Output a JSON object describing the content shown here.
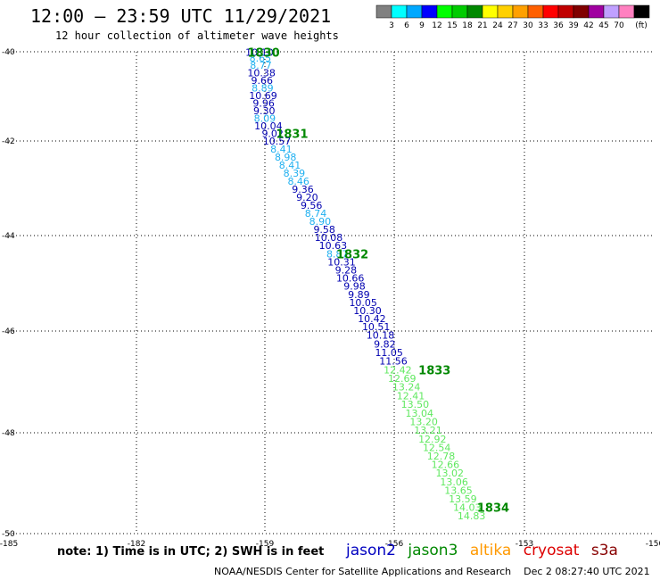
{
  "header": {
    "title": "12:00 – 23:59 UTC 11/29/2021",
    "subtitle": "12 hour collection of altimeter wave heights"
  },
  "colorbar": {
    "unit": "(ft)",
    "labels": [
      "3",
      "6",
      "9",
      "12",
      "15",
      "18",
      "21",
      "24",
      "27",
      "30",
      "33",
      "36",
      "39",
      "42",
      "45",
      "70"
    ],
    "colors": [
      "#808080",
      "#00ffff",
      "#00a8ff",
      "#0000ff",
      "#00ff00",
      "#00cc00",
      "#008800",
      "#ffff00",
      "#ffd000",
      "#ffa000",
      "#ff6000",
      "#ff0000",
      "#c00000",
      "#800000",
      "#a000a0",
      "#c0a0ff",
      "#ff80c0",
      "#000000"
    ]
  },
  "footer": {
    "note": "note:  1) Time is in UTC;  2) SWH is in feet",
    "satellites": [
      {
        "name": "jason2",
        "color": "#0000c0"
      },
      {
        "name": "jason3",
        "color": "#008800"
      },
      {
        "name": "altika",
        "color": "#ff9900"
      },
      {
        "name": "cryosat",
        "color": "#dd0000"
      },
      {
        "name": "s3a",
        "color": "#880000"
      }
    ],
    "credit": "NOAA/NESDIS Center for Satellite Applications and Research",
    "timestamp": "Dec  2 08:27:40 UTC 2021"
  },
  "chart_data": {
    "type": "scatter",
    "xlim": [
      -185,
      -150
    ],
    "ylim": [
      -50,
      -40
    ],
    "x_ticks": [
      "-185",
      "-182",
      "-159",
      "-156",
      "-153",
      "-150"
    ],
    "y_ticks": [
      "-40",
      "-42",
      "-44",
      "-46",
      "-48",
      "-50"
    ],
    "grid": true,
    "colors": {
      "c8": "#20b0f0",
      "c9": "#0000b0",
      "c12": "#60e860",
      "time": "#008800"
    },
    "points": [
      {
        "x": -159.97,
        "y": -40.01,
        "v": "10.10",
        "c": "c9"
      },
      {
        "x": -159.82,
        "y": -40.14,
        "v": "8.65",
        "c": "c8"
      },
      {
        "x": -159.72,
        "y": -40.3,
        "v": "8.77",
        "c": "c8"
      },
      {
        "x": -159.62,
        "y": -40.47,
        "v": "10.38",
        "c": "c9"
      },
      {
        "x": -159.52,
        "y": -40.64,
        "v": "9.66",
        "c": "c9"
      },
      {
        "x": -159.42,
        "y": -40.81,
        "v": "8.89",
        "c": "c8"
      },
      {
        "x": -159.32,
        "y": -40.98,
        "v": "10.69",
        "c": "c9"
      },
      {
        "x": -159.22,
        "y": -41.15,
        "v": "9.96",
        "c": "c9"
      },
      {
        "x": -159.12,
        "y": -41.32,
        "v": "9.30",
        "c": "c9"
      },
      {
        "x": -159.02,
        "y": -41.49,
        "v": "8.09",
        "c": "c8"
      },
      {
        "x": -158.92,
        "y": -41.66,
        "v": "10.04",
        "c": "c9"
      },
      {
        "x": -158.82,
        "y": -41.83,
        "v": "9.02",
        "c": "c9"
      },
      {
        "x": -158.72,
        "y": -42.0,
        "v": "10.57",
        "c": "c9"
      },
      {
        "x": -158.62,
        "y": -42.17,
        "v": "8.41",
        "c": "c8"
      },
      {
        "x": -158.52,
        "y": -42.34,
        "v": "8.98",
        "c": "c8"
      },
      {
        "x": -158.42,
        "y": -42.51,
        "v": "8.41",
        "c": "c8"
      },
      {
        "x": -158.32,
        "y": -42.68,
        "v": "8.39",
        "c": "c8"
      },
      {
        "x": -158.22,
        "y": -42.85,
        "v": "8.46",
        "c": "c8"
      },
      {
        "x": -158.12,
        "y": -43.02,
        "v": "9.36",
        "c": "c9"
      },
      {
        "x": -158.02,
        "y": -43.19,
        "v": "9.20",
        "c": "c9"
      },
      {
        "x": -157.92,
        "y": -43.36,
        "v": "9.56",
        "c": "c9"
      },
      {
        "x": -157.82,
        "y": -43.53,
        "v": "8.74",
        "c": "c8"
      },
      {
        "x": -157.72,
        "y": -43.7,
        "v": "8.90",
        "c": "c8"
      },
      {
        "x": -157.62,
        "y": -43.87,
        "v": "9.58",
        "c": "c9"
      },
      {
        "x": -157.52,
        "y": -44.04,
        "v": "10.08",
        "c": "c9"
      },
      {
        "x": -157.42,
        "y": -44.21,
        "v": "10.63",
        "c": "c9"
      },
      {
        "x": -157.32,
        "y": -44.38,
        "v": "8.87",
        "c": "c8"
      },
      {
        "x": -157.22,
        "y": -44.55,
        "v": "10.31",
        "c": "c9"
      },
      {
        "x": -157.12,
        "y": -44.72,
        "v": "9.28",
        "c": "c9"
      },
      {
        "x": -157.02,
        "y": -44.89,
        "v": "10.66",
        "c": "c9"
      },
      {
        "x": -156.92,
        "y": -45.06,
        "v": "9.98",
        "c": "c9"
      },
      {
        "x": -156.82,
        "y": -45.23,
        "v": "9.89",
        "c": "c9"
      },
      {
        "x": -156.72,
        "y": -45.4,
        "v": "10.05",
        "c": "c9"
      },
      {
        "x": -156.62,
        "y": -45.57,
        "v": "10.30",
        "c": "c9"
      },
      {
        "x": -156.52,
        "y": -45.74,
        "v": "10.42",
        "c": "c9"
      },
      {
        "x": -156.42,
        "y": -45.91,
        "v": "10.51",
        "c": "c9"
      },
      {
        "x": -156.32,
        "y": -46.08,
        "v": "10.18",
        "c": "c9"
      },
      {
        "x": -156.22,
        "y": -46.25,
        "v": "9.82",
        "c": "c9"
      },
      {
        "x": -156.12,
        "y": -46.42,
        "v": "11.05",
        "c": "c9"
      },
      {
        "x": -156.02,
        "y": -46.59,
        "v": "11.56",
        "c": "c9"
      },
      {
        "x": -155.92,
        "y": -46.76,
        "v": "12.42",
        "c": "c12"
      },
      {
        "x": -155.82,
        "y": -46.93,
        "v": "12.69",
        "c": "c12"
      },
      {
        "x": -155.72,
        "y": -47.1,
        "v": "13.24",
        "c": "c12"
      },
      {
        "x": -155.62,
        "y": -47.27,
        "v": "12.41",
        "c": "c12"
      },
      {
        "x": -155.52,
        "y": -47.44,
        "v": "13.50",
        "c": "c12"
      },
      {
        "x": -155.42,
        "y": -47.61,
        "v": "13.04",
        "c": "c12"
      },
      {
        "x": -155.32,
        "y": -47.78,
        "v": "13.20",
        "c": "c12"
      },
      {
        "x": -155.22,
        "y": -47.95,
        "v": "13.21",
        "c": "c12"
      },
      {
        "x": -155.12,
        "y": -48.12,
        "v": "12.92",
        "c": "c12"
      },
      {
        "x": -155.02,
        "y": -48.29,
        "v": "12.54",
        "c": "c12"
      },
      {
        "x": -154.92,
        "y": -48.46,
        "v": "12.78",
        "c": "c12"
      },
      {
        "x": -154.82,
        "y": -48.63,
        "v": "12.66",
        "c": "c12"
      },
      {
        "x": -154.72,
        "y": -48.8,
        "v": "13.02",
        "c": "c12"
      },
      {
        "x": -154.62,
        "y": -48.97,
        "v": "13.06",
        "c": "c12"
      },
      {
        "x": -154.52,
        "y": -49.14,
        "v": "13.65",
        "c": "c12"
      },
      {
        "x": -154.42,
        "y": -49.31,
        "v": "13.59",
        "c": "c12"
      },
      {
        "x": -154.32,
        "y": -49.48,
        "v": "14.03",
        "c": "c12"
      },
      {
        "x": -154.22,
        "y": -49.65,
        "v": "14.83",
        "c": "c12"
      }
    ],
    "time_labels": [
      {
        "x": -159.22,
        "y": -40.01,
        "v": "1830"
      },
      {
        "x": -158.37,
        "y": -41.83,
        "v": "1831"
      },
      {
        "x": -156.97,
        "y": -44.38,
        "v": "1832"
      },
      {
        "x": -155.07,
        "y": -46.76,
        "v": "1833"
      },
      {
        "x": -153.72,
        "y": -49.48,
        "v": "1834"
      }
    ]
  }
}
